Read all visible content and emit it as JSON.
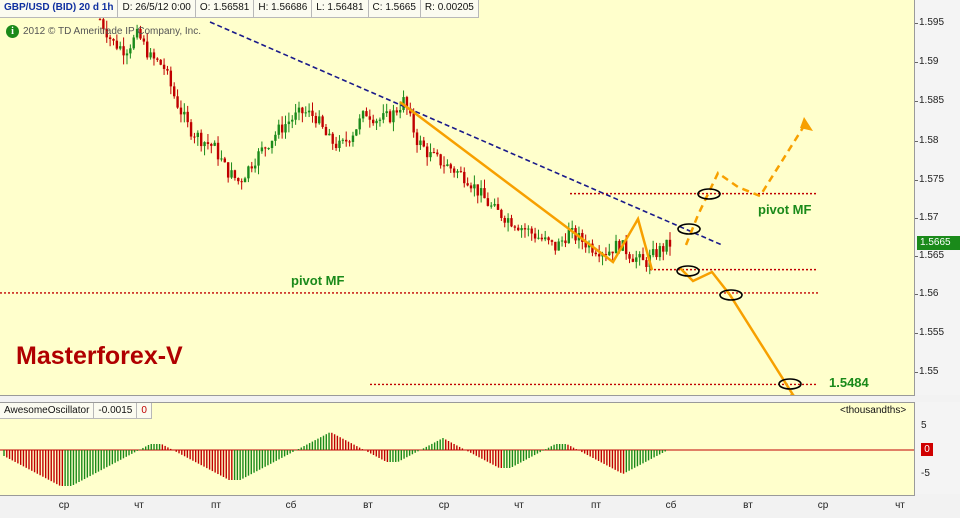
{
  "header": {
    "symbol": "GBP/USD (BID) 20 d 1h",
    "date": "D: 26/5/12 0:00",
    "open": "O: 1.56581",
    "high": "H: 1.56686",
    "low": "L: 1.56481",
    "close": "C: 1.5665",
    "range": "R: 0.00205"
  },
  "copyright": "2012 © TD Ameritrade IP Company, Inc.",
  "brand": "Masterforex-V",
  "annotations": {
    "pivot_upper": "pivot MF",
    "pivot_lower": "pivot MF",
    "target": "1.5484"
  },
  "price_axis": {
    "ticks": [
      "1.595",
      "1.59",
      "1.585",
      "1.58",
      "1.575",
      "1.57",
      "1.565",
      "1.56",
      "1.555",
      "1.55"
    ],
    "last_price": "1.5665"
  },
  "oscillator": {
    "name": "AwesomeOscillator",
    "value": "-0.0015",
    "zero_value": "0",
    "units": "<thousandths>",
    "axis_ticks": [
      "5",
      "-5"
    ],
    "zero_badge": "0"
  },
  "time_axis": {
    "labels": [
      "ср",
      "чт",
      "пт",
      "сб",
      "вт",
      "ср",
      "чт",
      "пт",
      "сб",
      "вт",
      "ср",
      "чт"
    ]
  },
  "colors": {
    "background": "#ffffcc",
    "bull": "#1a8a1a",
    "bear": "#c00000",
    "trend": "#f7a000",
    "trendline": "#1a1a8a",
    "brand": "#b00000"
  },
  "chart_data": {
    "type": "candlestick",
    "ylim": [
      1.546,
      1.5965
    ],
    "price_path": [
      [
        0,
        1.5955
      ],
      [
        4,
        1.5925
      ],
      [
        8,
        1.5915
      ],
      [
        12,
        1.5935
      ],
      [
        16,
        1.5905
      ],
      [
        20,
        1.5895
      ],
      [
        24,
        1.585
      ],
      [
        28,
        1.5815
      ],
      [
        32,
        1.58
      ],
      [
        36,
        1.579
      ],
      [
        40,
        1.576
      ],
      [
        44,
        1.5745
      ],
      [
        48,
        1.577
      ],
      [
        52,
        1.579
      ],
      [
        56,
        1.581
      ],
      [
        60,
        1.5825
      ],
      [
        64,
        1.5835
      ],
      [
        68,
        1.583
      ],
      [
        72,
        1.58
      ],
      [
        76,
        1.579
      ],
      [
        80,
        1.581
      ],
      [
        84,
        1.5835
      ],
      [
        88,
        1.5825
      ],
      [
        92,
        1.583
      ],
      [
        96,
        1.585
      ],
      [
        100,
        1.58
      ],
      [
        104,
        1.578
      ],
      [
        108,
        1.577
      ],
      [
        112,
        1.576
      ],
      [
        116,
        1.575
      ],
      [
        120,
        1.573
      ],
      [
        124,
        1.571
      ],
      [
        128,
        1.57
      ],
      [
        132,
        1.569
      ],
      [
        136,
        1.568
      ],
      [
        140,
        1.567
      ],
      [
        144,
        1.566
      ],
      [
        148,
        1.568
      ],
      [
        152,
        1.567
      ],
      [
        156,
        1.566
      ],
      [
        160,
        1.5655
      ],
      [
        164,
        1.5665
      ],
      [
        168,
        1.565
      ],
      [
        172,
        1.564
      ],
      [
        176,
        1.5655
      ],
      [
        180,
        1.5665
      ]
    ],
    "levels": [
      1.573,
      1.5632,
      1.5602,
      1.5484
    ],
    "oscillator_values_thousandths": [
      -1,
      -2,
      -3,
      -4,
      -5,
      -6,
      -6,
      -5,
      -4,
      -3,
      -2,
      -1,
      0,
      1,
      1,
      0,
      -1,
      -2,
      -3,
      -4,
      -5,
      -5,
      -4,
      -3,
      -2,
      -1,
      0,
      1,
      2,
      3,
      2,
      1,
      0,
      -1,
      -2,
      -2,
      -1,
      0,
      1,
      2,
      1,
      0,
      -1,
      -2,
      -3,
      -3,
      -2,
      -1,
      0,
      1,
      1,
      0,
      -1,
      -2,
      -3,
      -4,
      -3,
      -2,
      -1,
      0
    ]
  }
}
